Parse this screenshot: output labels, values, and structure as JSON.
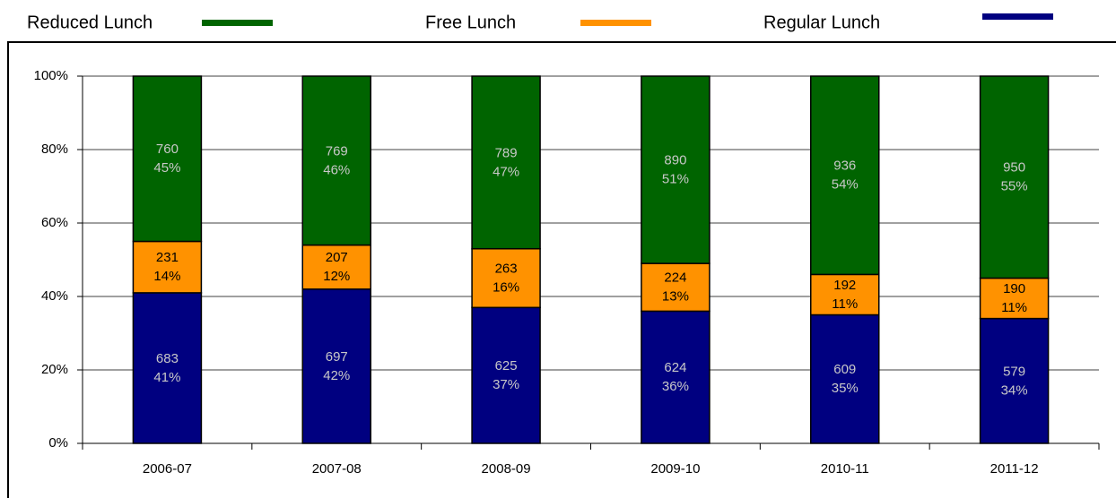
{
  "chart_data": {
    "type": "stacked_bar_percent",
    "categories": [
      "2006-07",
      "2007-08",
      "2008-09",
      "2009-10",
      "2010-11",
      "2011-12"
    ],
    "series": [
      {
        "name": "Reduced Lunch",
        "color": "#006400",
        "label_color": "#c8c8c8",
        "values": [
          45,
          46,
          47,
          51,
          54,
          55
        ],
        "value_labels": [
          "45%",
          "46%",
          "47%",
          "51%",
          "54%",
          "55%"
        ],
        "counts": [
          760,
          769,
          789,
          890,
          936,
          950
        ]
      },
      {
        "name": "Free Lunch",
        "color": "#ff9200",
        "label_color": "#000000",
        "values": [
          14,
          12,
          16,
          13,
          11,
          11
        ],
        "value_labels": [
          "14%",
          "12%",
          "16%",
          "13%",
          "11%",
          "11%"
        ],
        "counts": [
          231,
          207,
          263,
          224,
          192,
          190
        ]
      },
      {
        "name": "Regular Lunch",
        "color": "#000080",
        "label_color": "#c8c8c8",
        "values": [
          41,
          42,
          37,
          36,
          35,
          34
        ],
        "value_labels": [
          "41%",
          "42%",
          "37%",
          "36%",
          "35%",
          "34%"
        ],
        "counts": [
          683,
          697,
          625,
          624,
          609,
          579
        ]
      }
    ],
    "ylim": [
      0,
      100
    ],
    "yticks": [
      {
        "value": 0,
        "label": "0%"
      },
      {
        "value": 20,
        "label": "20%"
      },
      {
        "value": 40,
        "label": "40%"
      },
      {
        "value": 60,
        "label": "60%"
      },
      {
        "value": 80,
        "label": "80%"
      },
      {
        "value": 100,
        "label": "100%"
      }
    ],
    "grid": true
  }
}
